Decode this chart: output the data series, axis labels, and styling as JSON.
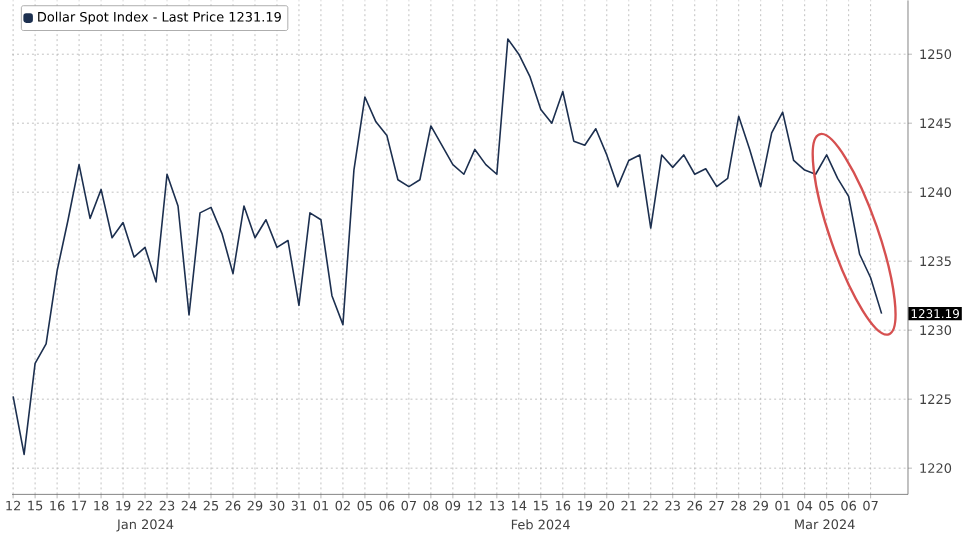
{
  "chart_data": {
    "type": "line",
    "categories": [
      "12",
      null,
      "15",
      null,
      "16",
      null,
      "17",
      null,
      "18",
      null,
      "19",
      null,
      "22",
      null,
      "23",
      null,
      "24",
      null,
      "25",
      null,
      "26",
      null,
      "29",
      null,
      "30",
      null,
      "31",
      null,
      "01",
      null,
      "02",
      null,
      "05",
      null,
      "06",
      null,
      "07",
      null,
      "08",
      null,
      "09",
      null,
      "12",
      null,
      "13",
      null,
      "14",
      null,
      "15",
      null,
      "16",
      null,
      "19",
      null,
      "20",
      null,
      "21",
      null,
      "22",
      null,
      "23",
      null,
      "26",
      null,
      "27",
      null,
      "28",
      null,
      "29",
      null,
      "01",
      null,
      "04",
      null,
      "05",
      null,
      "06",
      null,
      "07",
      null
    ],
    "series": [
      {
        "name": "Dollar Spot Index - Last Price 1231.19",
        "color": "#1c2f4f",
        "values": [
          1225.2,
          1221.0,
          1227.6,
          1229.0,
          1234.3,
          1238.0,
          1242.0,
          1238.1,
          1240.2,
          1236.7,
          1237.8,
          1235.3,
          1236.0,
          1233.5,
          1241.3,
          1239.0,
          1231.1,
          1238.5,
          1238.9,
          1237.0,
          1234.1,
          1239.0,
          1236.7,
          1238.0,
          1236.0,
          1236.5,
          1231.8,
          1238.5,
          1238.0,
          1232.5,
          1230.4,
          1241.6,
          1246.9,
          1245.1,
          1244.1,
          1240.9,
          1240.4,
          1240.9,
          1244.8,
          1243.4,
          1242.0,
          1241.3,
          1243.1,
          1242.0,
          1241.3,
          1251.1,
          1250.0,
          1248.4,
          1246.0,
          1245.0,
          1247.3,
          1243.7,
          1243.4,
          1244.6,
          1242.7,
          1240.4,
          1242.3,
          1242.7,
          1237.4,
          1242.7,
          1241.8,
          1242.7,
          1241.3,
          1241.7,
          1240.4,
          1241.0,
          1245.5,
          1243.1,
          1240.4,
          1244.3,
          1245.8,
          1242.3,
          1241.6,
          1241.3,
          1242.7,
          1241.0,
          1239.7,
          1235.5,
          1233.8,
          1231.2
        ]
      }
    ],
    "ylim": [
      1218.1,
      1253.9
    ],
    "yticks": [
      1220,
      1225,
      1230,
      1235,
      1240,
      1245,
      1250
    ],
    "grid": true,
    "legend": "top left",
    "marker": "none",
    "line_style": "solid",
    "annotations": [
      "Jan 2024",
      "Feb 2024",
      "Mar 2024",
      "1231.19"
    ]
  }
}
